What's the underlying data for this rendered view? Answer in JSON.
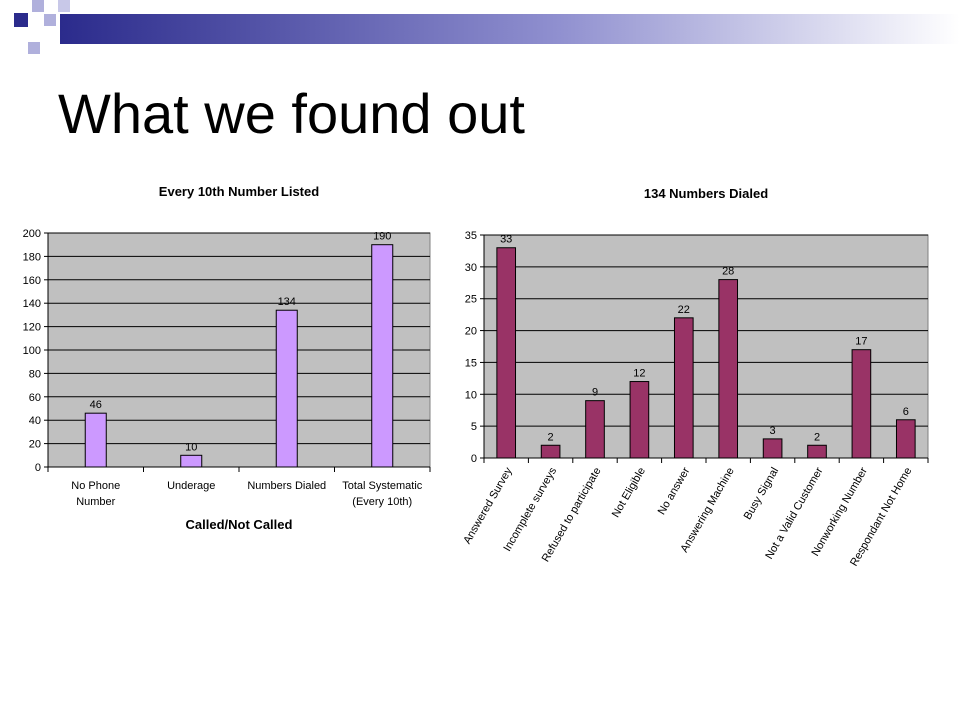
{
  "slide": {
    "title": "What we found out",
    "colors": {
      "banner_dark": "#2b2b8c",
      "banner_light": "#9a9ad6",
      "plot_area": "#c0c0c0",
      "gridline": "#000000"
    }
  },
  "chart_data": [
    {
      "type": "bar",
      "title": "Every 10th Number Listed",
      "xlabel": "Called/Not Called",
      "ylabel": "",
      "categories": [
        [
          "No Phone",
          "Number"
        ],
        [
          "Underage"
        ],
        [
          "Numbers Dialed"
        ],
        [
          "Total Systematic",
          "(Every 10th)"
        ]
      ],
      "values": [
        46,
        10,
        134,
        190
      ],
      "ylim": [
        0,
        200
      ],
      "ytick_step": 20,
      "grid": true,
      "legend": "none",
      "bar_color": "#cc99ff"
    },
    {
      "type": "bar",
      "title": "134 Numbers Dialed",
      "xlabel": "",
      "ylabel": "",
      "categories": [
        "Answered Survey",
        "Incomplete surveys",
        "Refused to participate",
        "Not Eligible",
        "No answer",
        "Answering Machine",
        "Busy Signal",
        "Not a Valid Customer",
        "Nonworking Number",
        "Respondant Not Home"
      ],
      "values": [
        33,
        2,
        9,
        12,
        22,
        28,
        3,
        2,
        17,
        6
      ],
      "ylim": [
        0,
        35
      ],
      "ytick_step": 5,
      "grid": true,
      "legend": "none",
      "bar_color": "#993366"
    }
  ]
}
